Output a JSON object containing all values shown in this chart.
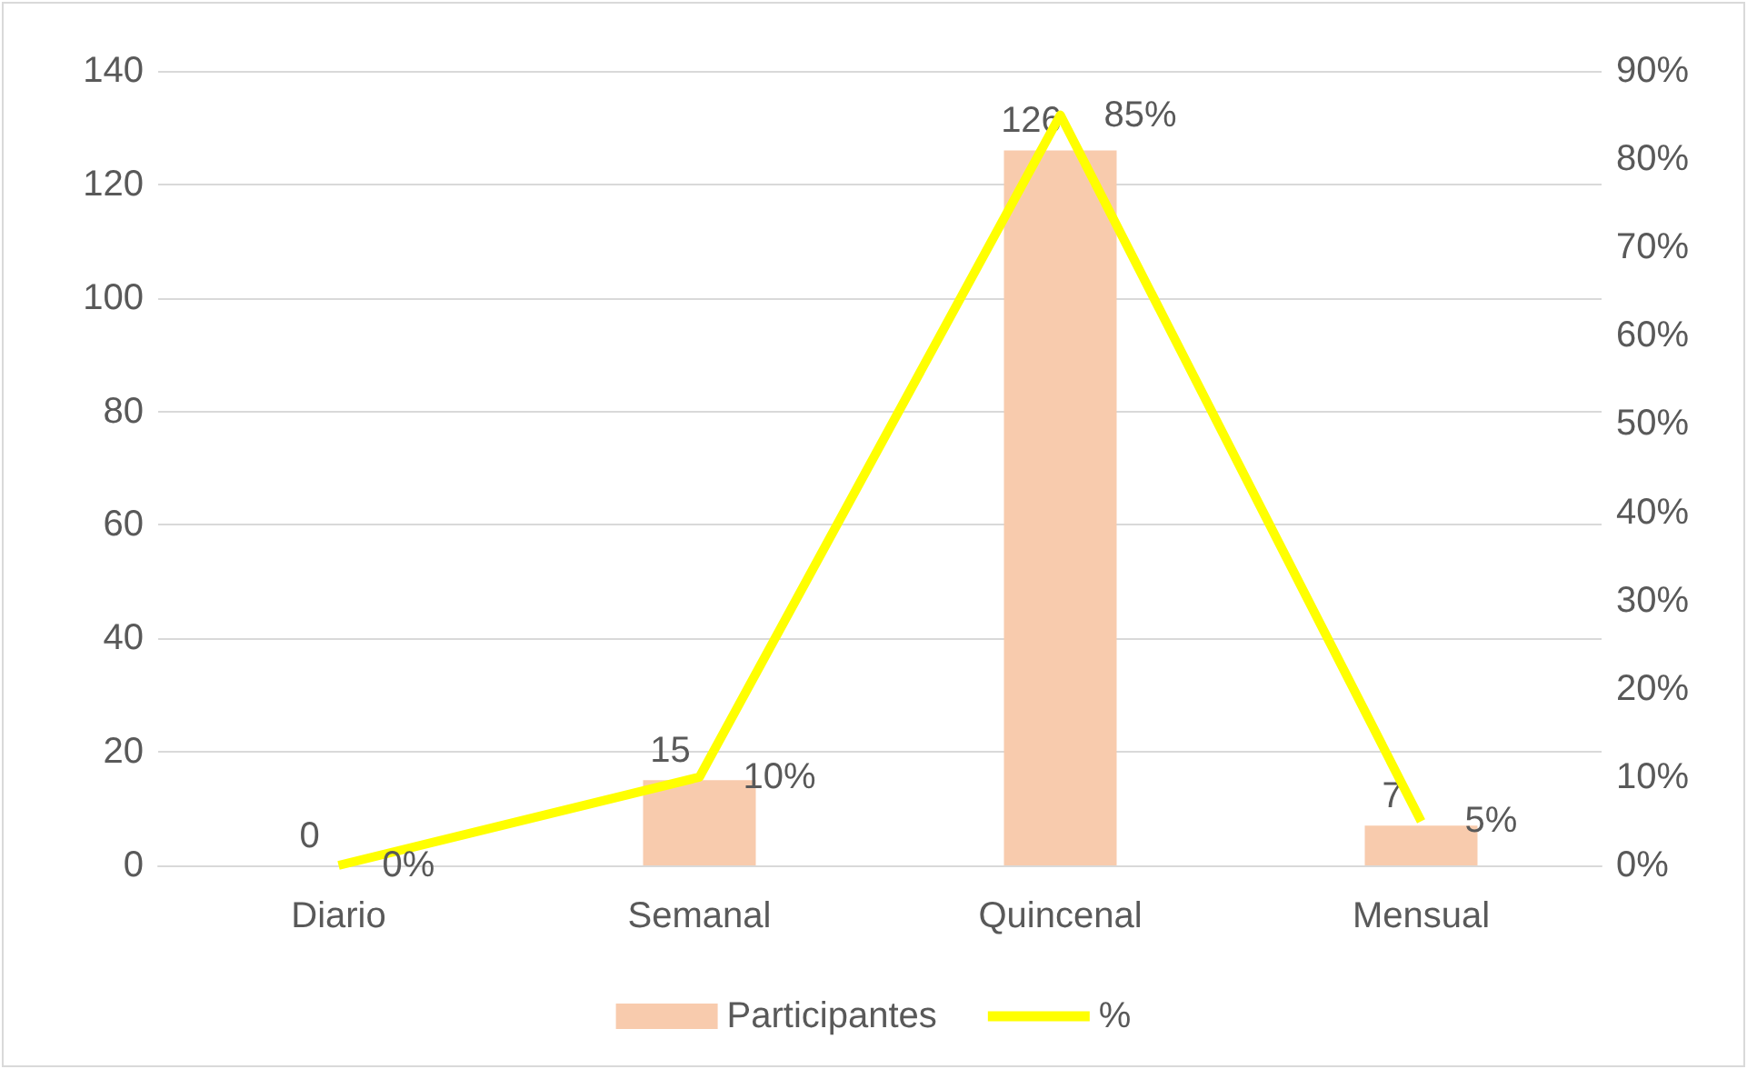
{
  "chart_data": {
    "type": "bar",
    "categories": [
      "Diario",
      "Semanal",
      "Quincenal",
      "Mensual"
    ],
    "series": [
      {
        "name": "Participantes",
        "color": "#f8cbad",
        "values": [
          0,
          15,
          126,
          7
        ],
        "data_labels": true
      },
      {
        "name": "%",
        "type": "line",
        "axis": "y2",
        "color": "#ffff00",
        "values": [
          0,
          10,
          85,
          5
        ],
        "value_labels": [
          "0%",
          "10%",
          "85%",
          "5%"
        ],
        "marker": "none"
      }
    ],
    "ylim": [
      0,
      140
    ],
    "yticks": [
      0,
      20,
      40,
      60,
      80,
      100,
      120,
      140
    ],
    "y2lim": [
      0,
      90
    ],
    "y2ticks": [
      {
        "value": 0,
        "label": "0%"
      },
      {
        "value": 10,
        "label": "10%"
      },
      {
        "value": 20,
        "label": "20%"
      },
      {
        "value": 30,
        "label": "30%"
      },
      {
        "value": 40,
        "label": "40%"
      },
      {
        "value": 50,
        "label": "50%"
      },
      {
        "value": 60,
        "label": "60%"
      },
      {
        "value": 70,
        "label": "70%"
      },
      {
        "value": 80,
        "label": "80%"
      },
      {
        "value": 90,
        "label": "90%"
      }
    ],
    "grid": "y",
    "legend": "bottom"
  }
}
